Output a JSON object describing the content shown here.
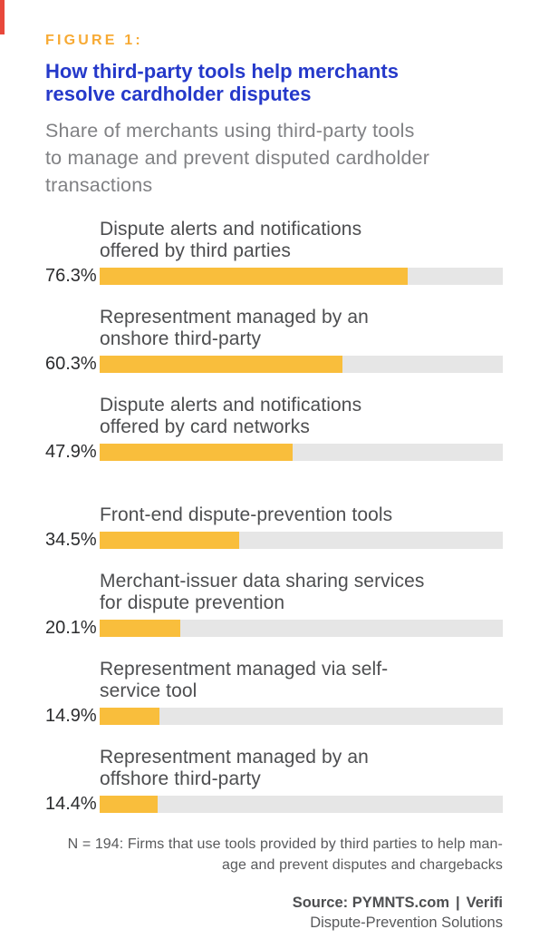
{
  "decoration": {
    "top_left_line_color": "#e8483b"
  },
  "header": {
    "figure_label": "FIGURE 1:",
    "title_lines": [
      "How third-party tools help merchants",
      "resolve cardholder disputes"
    ],
    "subtitle_lines": [
      "Share of merchants using third-party tools",
      "to manage and prevent disputed cardholder",
      "transactions"
    ],
    "colors": {
      "figure_label": "#f7aa34",
      "title": "#2539ca",
      "subtitle": "#808184"
    }
  },
  "chart_data": {
    "type": "bar",
    "orientation": "horizontal",
    "title": "How third-party tools help merchants resolve cardholder disputes",
    "subtitle": "Share of merchants using third-party tools to manage and prevent disputed cardholder transactions",
    "unit": "%",
    "xlim": [
      0,
      100
    ],
    "grid": false,
    "legend": false,
    "bar_color": "#f9be3c",
    "track_color": "#e6e6e6",
    "categories": [
      "Dispute alerts and notifications offered by third parties",
      "Representment managed by an onshore third-party",
      "Dispute alerts and notifications offered by card networks",
      "Front-end dispute-prevention tools",
      "Merchant-issuer data sharing services for dispute prevention",
      "Representment managed via self-service tool",
      "Representment managed by an offshore third-party"
    ],
    "values": [
      76.3,
      60.3,
      47.9,
      34.5,
      20.1,
      14.9,
      14.4
    ],
    "rows": [
      {
        "label_lines": [
          "Dispute alerts and notifications",
          "offered by third parties"
        ],
        "value": 76.3,
        "value_label": "76.3%"
      },
      {
        "label_lines": [
          "Representment managed by an",
          "onshore third-party"
        ],
        "value": 60.3,
        "value_label": "60.3%"
      },
      {
        "label_lines": [
          "Dispute alerts and notifications",
          "offered by card networks"
        ],
        "value": 47.9,
        "value_label": "47.9%"
      },
      {
        "label_lines": [
          "Front-end dispute-prevention tools"
        ],
        "value": 34.5,
        "value_label": "34.5%"
      },
      {
        "label_lines": [
          "Merchant-issuer data sharing services",
          "for dispute prevention"
        ],
        "value": 20.1,
        "value_label": "20.1%"
      },
      {
        "label_lines": [
          "Representment managed via self-",
          "service tool"
        ],
        "value": 14.9,
        "value_label": "14.9%"
      },
      {
        "label_lines": [
          "Representment managed by an",
          "offshore third-party"
        ],
        "value": 14.4,
        "value_label": "14.4%"
      }
    ]
  },
  "footer": {
    "note_lines": [
      "N = 194: Firms that use tools provided by third parties to help man-",
      "age and prevent disputes and chargebacks"
    ],
    "source_prefix": "Source: PYMNTS.com",
    "source_separator": "|",
    "source_suffix": "Verifi",
    "sub_line": "Dispute-Prevention Solutions"
  }
}
